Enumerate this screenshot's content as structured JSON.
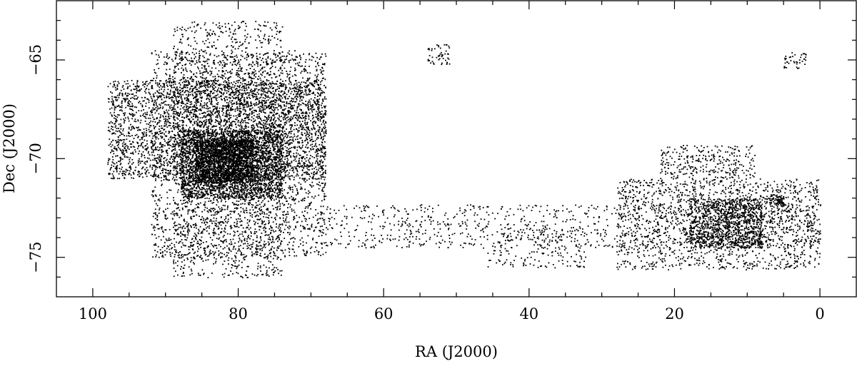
{
  "chart_data": {
    "type": "scatter",
    "xlabel": "RA (J2000)",
    "ylabel": "Dec (J2000)",
    "xlim": [
      105,
      -5
    ],
    "ylim": [
      -62,
      -77
    ],
    "x_ticks": [
      100,
      80,
      60,
      40,
      20,
      0
    ],
    "x_tick_labels": [
      "100",
      "80",
      "60",
      "40",
      "20",
      "0"
    ],
    "y_ticks": [
      -65,
      -70,
      -75
    ],
    "y_tick_labels": [
      "−65",
      "−70",
      "−75"
    ],
    "x_reversed": true,
    "grid": false,
    "marker_color": "#000000",
    "point_regions": [
      {
        "ra": [
          68,
          98
        ],
        "dec": [
          -71,
          -66
        ],
        "density": 3000
      },
      {
        "ra": [
          68,
          92
        ],
        "dec": [
          -75,
          -64.5
        ],
        "density": 3000
      },
      {
        "ra": [
          74,
          89
        ],
        "dec": [
          -63,
          -76
        ],
        "density": 1600
      },
      {
        "ra": [
          74,
          88
        ],
        "dec": [
          -72,
          -68.5
        ],
        "density": 2200
      },
      {
        "ra": [
          78,
          86
        ],
        "dec": [
          -71.2,
          -69
        ],
        "density": 1500
      },
      {
        "ra": [
          51,
          54
        ],
        "dec": [
          -64.2,
          -65.2
        ],
        "density": 50
      },
      {
        "ra": [
          2,
          5
        ],
        "dec": [
          -64.6,
          -65.4
        ],
        "density": 40
      },
      {
        "ra": [
          0,
          68
        ],
        "dec": [
          -72.3,
          -74.5
        ],
        "density": 900
      },
      {
        "ra": [
          32,
          46
        ],
        "dec": [
          -73.5,
          -75.5
        ],
        "density": 200
      },
      {
        "ra": [
          0,
          28
        ],
        "dec": [
          -71,
          -75.6
        ],
        "density": 1600
      },
      {
        "ra": [
          9,
          22
        ],
        "dec": [
          -69.3,
          -71
        ],
        "density": 300
      },
      {
        "ra": [
          8,
          18
        ],
        "dec": [
          -72,
          -74.5
        ],
        "density": 1000
      },
      {
        "ra": [
          5,
          7
        ],
        "dec": [
          -71.8,
          -72.4
        ],
        "density": 80
      }
    ]
  }
}
